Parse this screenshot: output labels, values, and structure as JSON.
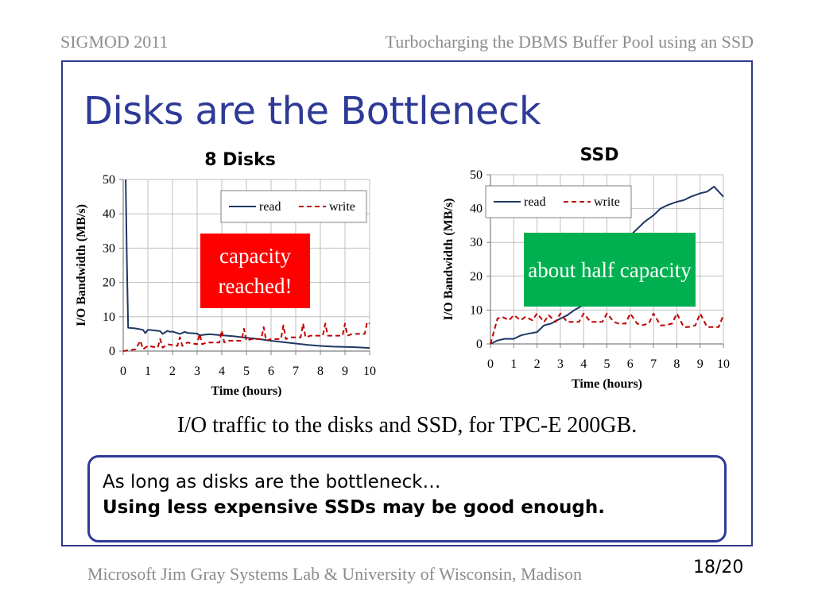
{
  "header": {
    "left": "SIGMOD 2011",
    "right": "Turbocharging the DBMS Buffer Pool using an SSD"
  },
  "slide_title": "Disks are the Bottleneck",
  "annotations": {
    "disks": "capacity reached!",
    "ssd": "about half capacity"
  },
  "caption": "I/O traffic to the disks and SSD, for TPC-E 200GB.",
  "callout": {
    "line1": "As long as disks are the bottleneck…",
    "line2": "Using less expensive SSDs may be good enough."
  },
  "footer": "Microsoft Jim Gray Systems Lab & University of Wisconsin, Madison",
  "page_number": "18/20",
  "colors": {
    "read": "#1f3864",
    "write": "#c00000",
    "title": "#2e3a96",
    "grid": "#bfbfbf"
  },
  "chart_data": [
    {
      "type": "line",
      "title": "8 Disks",
      "xlabel": "Time (hours)",
      "ylabel": "I/O Bandwidth (MB/s)",
      "xlim": [
        0,
        10
      ],
      "ylim": [
        0,
        50
      ],
      "xticks": [
        0,
        1,
        2,
        3,
        4,
        5,
        6,
        7,
        8,
        9,
        10
      ],
      "yticks": [
        0,
        10,
        20,
        30,
        40,
        50
      ],
      "grid": true,
      "legend": "top-right",
      "series": [
        {
          "name": "read",
          "style": "solid",
          "x": [
            0.1,
            0.15,
            0.2,
            0.5,
            0.8,
            0.9,
            1.0,
            1.3,
            1.5,
            1.6,
            1.8,
            1.9,
            2.0,
            2.3,
            2.5,
            2.6,
            3.0,
            3.1,
            3.5,
            4.0,
            4.5,
            5.0,
            5.5,
            6.0,
            6.5,
            7.0,
            7.5,
            8.0,
            8.5,
            9.0,
            9.5,
            10.0
          ],
          "y": [
            50,
            25,
            6.8,
            6.6,
            6.2,
            5.2,
            6.2,
            6.0,
            5.8,
            5.0,
            5.9,
            5.6,
            5.7,
            5.0,
            5.6,
            5.3,
            5.1,
            4.6,
            4.9,
            4.6,
            4.3,
            3.9,
            3.5,
            3.0,
            2.6,
            2.2,
            1.8,
            1.5,
            1.3,
            1.2,
            1.1,
            0.9
          ]
        },
        {
          "name": "write",
          "style": "dashed",
          "x": [
            0,
            0.5,
            0.7,
            0.8,
            1.0,
            1.4,
            1.5,
            1.6,
            1.8,
            2.2,
            2.3,
            2.4,
            2.6,
            3.0,
            3.1,
            3.2,
            3.4,
            3.9,
            4.0,
            4.1,
            4.3,
            4.8,
            4.9,
            5.0,
            5.2,
            5.6,
            5.7,
            5.8,
            6.0,
            6.4,
            6.5,
            6.6,
            6.8,
            7.2,
            7.3,
            7.4,
            7.6,
            8.1,
            8.2,
            8.3,
            8.5,
            8.9,
            9.0,
            9.1,
            9.3,
            9.8,
            9.9,
            10.0
          ],
          "y": [
            0,
            0.5,
            3,
            0.5,
            1.5,
            1,
            3.5,
            1,
            2,
            1.5,
            4,
            1.5,
            2.5,
            2,
            5,
            2,
            2.5,
            2.5,
            6,
            2.5,
            3,
            3,
            6.5,
            3,
            3.5,
            3.5,
            7,
            3,
            3.5,
            3.5,
            7.5,
            3.5,
            4,
            4,
            8,
            4,
            4.5,
            4.5,
            8,
            4.5,
            4.5,
            4.5,
            8,
            4.5,
            5,
            5,
            8.5,
            8
          ]
        }
      ]
    },
    {
      "type": "line",
      "title": "SSD",
      "xlabel": "Time (hours)",
      "ylabel": "I/O Bandwidth (MB/s)",
      "xlim": [
        0,
        10
      ],
      "ylim": [
        0,
        50
      ],
      "xticks": [
        0,
        1,
        2,
        3,
        4,
        5,
        6,
        7,
        8,
        9,
        10
      ],
      "yticks": [
        0,
        10,
        20,
        30,
        40,
        50
      ],
      "grid": true,
      "legend": "top-left",
      "series": [
        {
          "name": "read",
          "style": "solid",
          "x": [
            0,
            0.3,
            0.6,
            1.0,
            1.3,
            1.6,
            2.0,
            2.3,
            2.6,
            3.0,
            3.3,
            3.6,
            4.0,
            4.3,
            4.6,
            5.0,
            5.3,
            5.6,
            6.0,
            6.3,
            6.6,
            7.0,
            7.3,
            7.6,
            8.0,
            8.3,
            8.6,
            9.0,
            9.3,
            9.6,
            10.0
          ],
          "y": [
            0,
            1,
            1.5,
            1.5,
            2.5,
            3,
            3.5,
            5.5,
            6,
            7.5,
            8.5,
            10,
            11.5,
            14,
            17,
            22,
            26,
            29,
            32,
            34,
            36,
            38,
            40,
            41,
            42,
            42.5,
            43.5,
            44.5,
            45,
            46.5,
            43.5
          ]
        },
        {
          "name": "write",
          "style": "dashed",
          "x": [
            0,
            0.3,
            0.5,
            0.8,
            1.0,
            1.3,
            1.5,
            1.8,
            2.0,
            2.3,
            2.5,
            2.8,
            3.0,
            3.3,
            3.5,
            3.8,
            4.0,
            4.3,
            4.5,
            4.8,
            5.0,
            5.3,
            5.5,
            5.8,
            6.0,
            6.3,
            6.5,
            6.8,
            7.0,
            7.3,
            7.5,
            7.8,
            8.0,
            8.3,
            8.5,
            8.8,
            9.0,
            9.3,
            9.5,
            9.8,
            10.0
          ],
          "y": [
            0,
            7.5,
            8,
            7,
            8.5,
            7,
            8,
            7,
            9,
            6.5,
            8.5,
            6.5,
            9,
            6.5,
            6.5,
            6.5,
            9,
            6.5,
            6.5,
            6.5,
            9,
            6.5,
            6,
            6,
            9,
            6,
            5.5,
            6,
            9,
            5.5,
            5.5,
            6,
            9,
            5,
            5,
            5.5,
            9,
            5,
            5,
            5,
            8.5
          ]
        }
      ]
    }
  ]
}
